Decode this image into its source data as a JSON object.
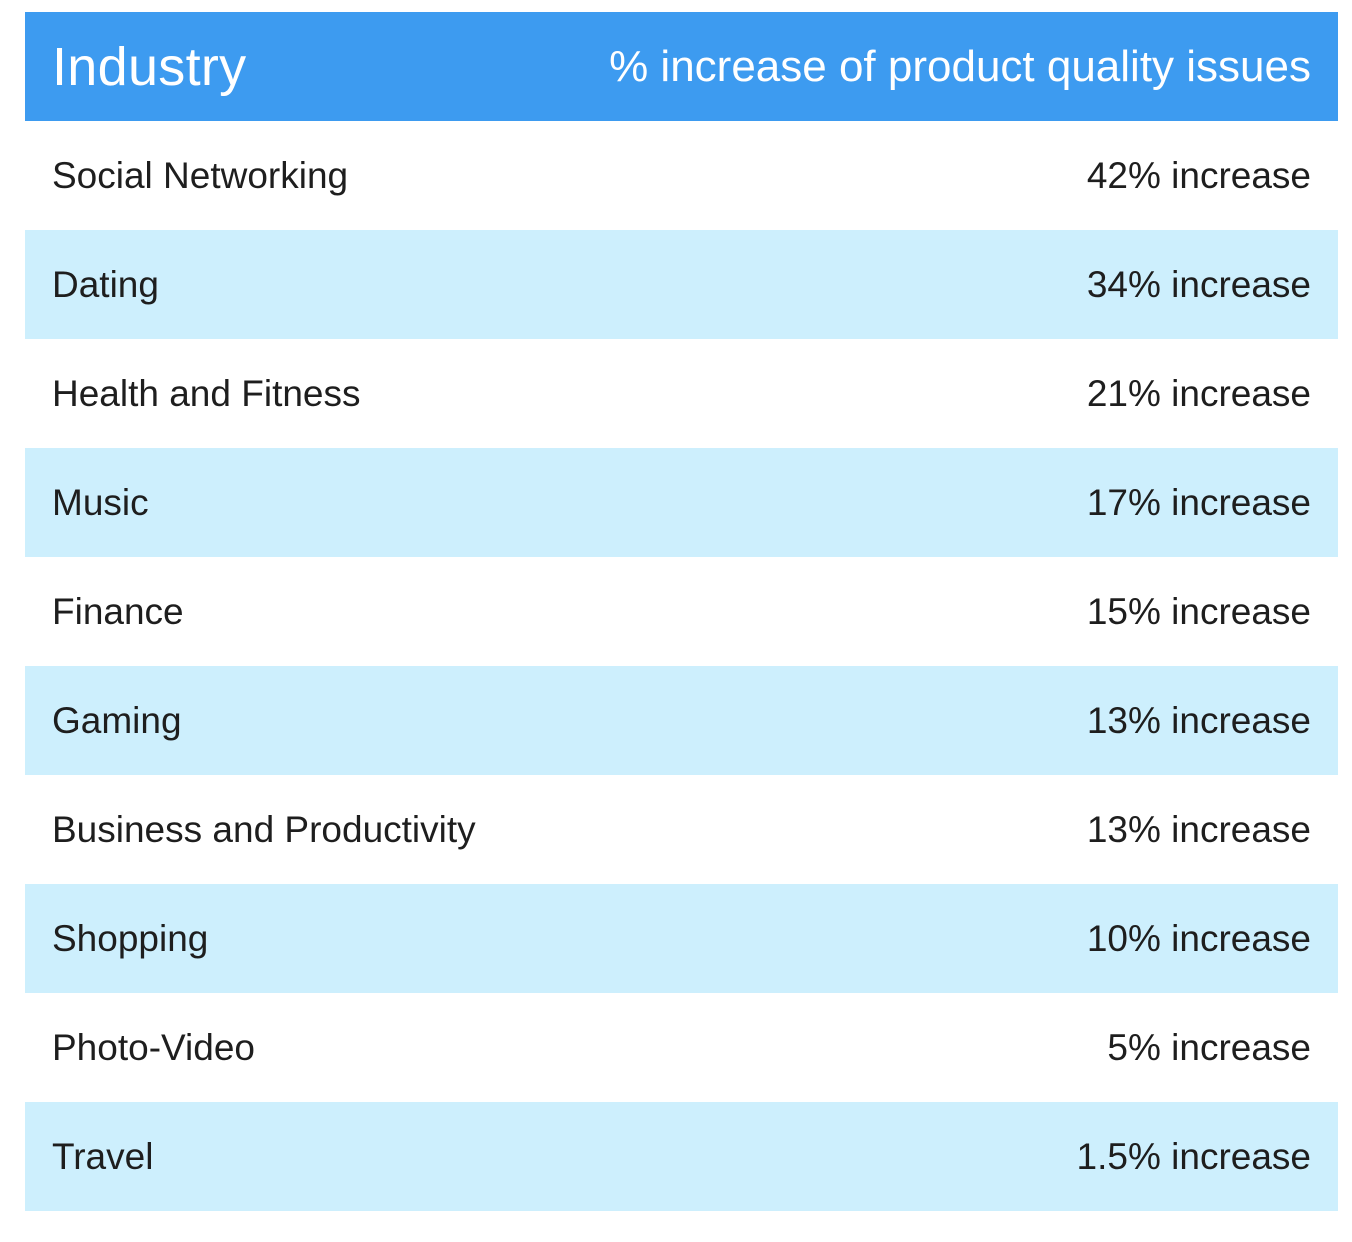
{
  "chart_data": {
    "type": "table",
    "columns": [
      "Industry",
      "% increase of product quality issues"
    ],
    "rows": [
      {
        "industry": "Social Networking",
        "value_label": "42% increase",
        "value": 42
      },
      {
        "industry": "Dating",
        "value_label": "34% increase",
        "value": 34
      },
      {
        "industry": "Health and Fitness",
        "value_label": "21% increase",
        "value": 21
      },
      {
        "industry": "Music",
        "value_label": "17% increase",
        "value": 17
      },
      {
        "industry": "Finance",
        "value_label": "15% increase",
        "value": 15
      },
      {
        "industry": "Gaming",
        "value_label": "13% increase",
        "value": 13
      },
      {
        "industry": "Business and Productivity",
        "value_label": "13% increase",
        "value": 13
      },
      {
        "industry": "Shopping",
        "value_label": "10% increase",
        "value": 10
      },
      {
        "industry": "Photo-Video",
        "value_label": "5% increase",
        "value": 5
      },
      {
        "industry": "Travel",
        "value_label": "1.5% increase",
        "value": 1.5
      }
    ]
  },
  "colors": {
    "header_bg": "#3d9bf0",
    "stripe_bg": "#cdeffd",
    "row_bg": "#ffffff",
    "text": "#1e1e1e",
    "header_text": "#ffffff"
  }
}
